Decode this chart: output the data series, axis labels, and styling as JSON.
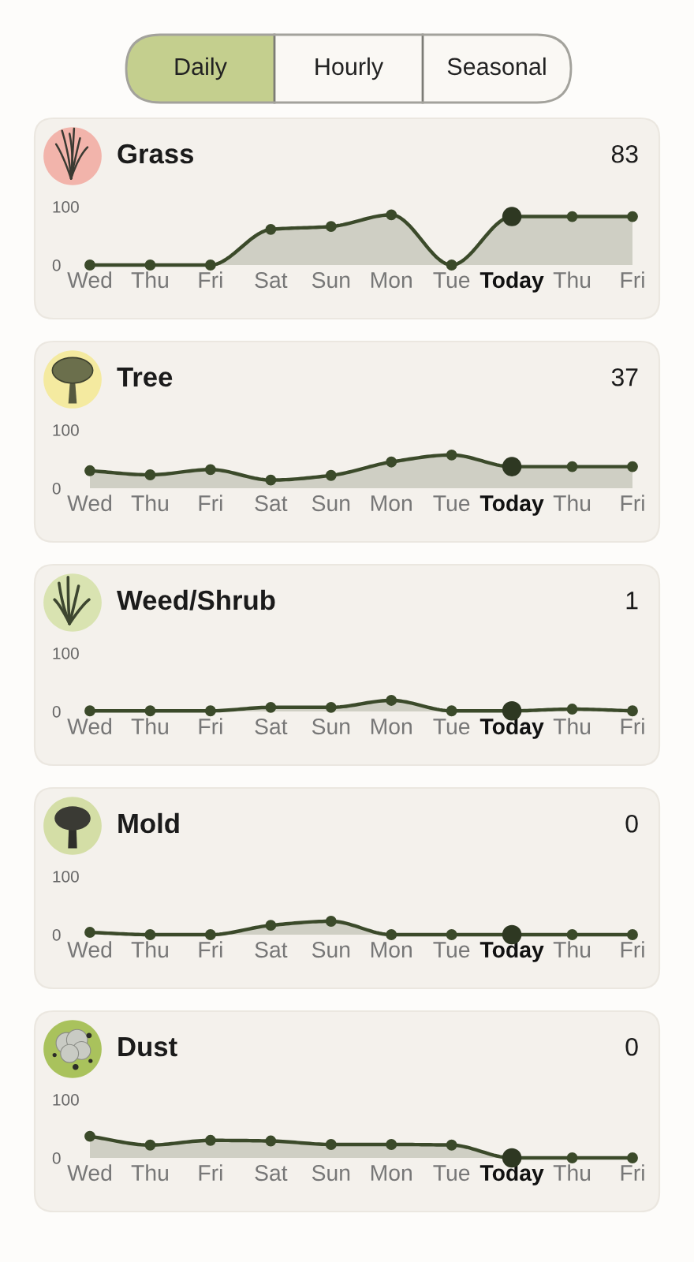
{
  "chart_data": [
    {
      "type": "other",
      "categories": [
        "Daily",
        "Hourly",
        "Seasonal"
      ],
      "colors": [
        "#c4cf8e",
        "#faf8f4",
        "#faf8f4"
      ]
    },
    {
      "type": "area",
      "title": "Grass",
      "annotations": [
        "83"
      ],
      "categories": [
        "Wed",
        "Thu",
        "Fri",
        "Sat",
        "Sun",
        "Mon",
        "Tue",
        "Today",
        "Thu",
        "Fri"
      ],
      "series": [
        {
          "color": "#3b4a2a",
          "values": [
            0,
            0,
            0,
            61,
            66,
            86,
            0,
            83,
            83,
            83
          ]
        },
        {
          "type": "scatter",
          "x": [
            "Today"
          ],
          "color": "#2e3822",
          "values": [
            83
          ]
        }
      ],
      "ylim": [
        0,
        100
      ],
      "yticks": [
        0,
        100
      ],
      "marker": "circle"
    },
    {
      "type": "area",
      "title": "Tree",
      "annotations": [
        "37"
      ],
      "categories": [
        "Wed",
        "Thu",
        "Fri",
        "Sat",
        "Sun",
        "Mon",
        "Tue",
        "Today",
        "Thu",
        "Fri"
      ],
      "series": [
        {
          "color": "#3b4a2a",
          "values": [
            30,
            23,
            32,
            14,
            22,
            45,
            57,
            37,
            37,
            37
          ]
        },
        {
          "type": "scatter",
          "x": [
            "Today"
          ],
          "color": "#2e3822",
          "values": [
            37
          ]
        }
      ],
      "ylim": [
        0,
        100
      ],
      "yticks": [
        0,
        100
      ],
      "marker": "circle"
    },
    {
      "type": "area",
      "title": "Weed/Shrub",
      "annotations": [
        "1"
      ],
      "categories": [
        "Wed",
        "Thu",
        "Fri",
        "Sat",
        "Sun",
        "Mon",
        "Tue",
        "Today",
        "Thu",
        "Fri"
      ],
      "series": [
        {
          "color": "#3b4a2a",
          "values": [
            1,
            1,
            1,
            7,
            7,
            19,
            1,
            1,
            4,
            1
          ]
        },
        {
          "type": "scatter",
          "x": [
            "Today"
          ],
          "color": "#2e3822",
          "values": [
            1
          ]
        }
      ],
      "ylim": [
        0,
        100
      ],
      "yticks": [
        0,
        100
      ],
      "marker": "circle"
    },
    {
      "type": "area",
      "title": "Mold",
      "annotations": [
        "0"
      ],
      "categories": [
        "Wed",
        "Thu",
        "Fri",
        "Sat",
        "Sun",
        "Mon",
        "Tue",
        "Today",
        "Thu",
        "Fri"
      ],
      "series": [
        {
          "color": "#3b4a2a",
          "values": [
            4,
            0,
            0,
            16,
            23,
            0,
            0,
            0,
            0,
            0
          ]
        },
        {
          "type": "scatter",
          "x": [
            "Today"
          ],
          "color": "#2e3822",
          "values": [
            0
          ]
        }
      ],
      "ylim": [
        0,
        100
      ],
      "yticks": [
        0,
        100
      ],
      "marker": "circle"
    },
    {
      "type": "area",
      "title": "Dust",
      "annotations": [
        "0"
      ],
      "categories": [
        "Wed",
        "Thu",
        "Fri",
        "Sat",
        "Sun",
        "Mon",
        "Tue",
        "Today",
        "Thu",
        "Fri"
      ],
      "series": [
        {
          "color": "#3b4a2a",
          "values": [
            37,
            22,
            30,
            29,
            23,
            23,
            22,
            0,
            0,
            0
          ]
        },
        {
          "type": "scatter",
          "x": [
            "Today"
          ],
          "color": "#2e3822",
          "values": [
            0
          ]
        }
      ],
      "ylim": [
        0,
        100
      ],
      "yticks": [
        0,
        100
      ],
      "marker": "circle"
    }
  ]
}
